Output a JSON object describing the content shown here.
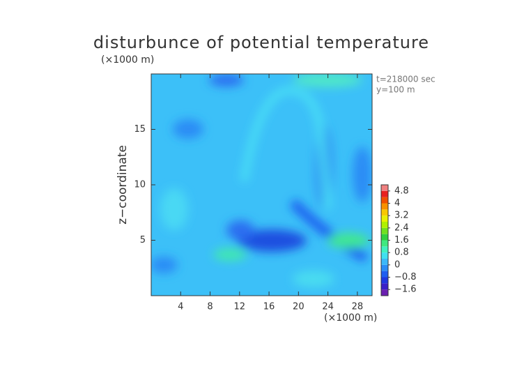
{
  "chart_data": {
    "type": "contour",
    "title": "disturbunce of potential temperature",
    "y_unit_label": "(×1000 m)",
    "x_unit_label": "(×1000 m)",
    "ylabel": "z−coordinate",
    "annotations": [
      "t=218000 sec",
      "y=100 m"
    ],
    "xlim": [
      0,
      30
    ],
    "xticks": [
      4,
      8,
      12,
      16,
      20,
      24,
      28
    ],
    "ylim": [
      0,
      20
    ],
    "yticks": [
      5,
      10,
      15
    ],
    "colorbar": {
      "lim": [
        -2.0,
        5.2
      ],
      "levels": [
        -2.0,
        -1.6,
        -1.2,
        -0.8,
        -0.4,
        0,
        0.4,
        0.8,
        1.2,
        1.6,
        2.0,
        2.4,
        2.8,
        3.2,
        3.6,
        4.0,
        4.4,
        4.8,
        5.2
      ],
      "colors": [
        "#6a1fb0",
        "#3a20c8",
        "#2038e0",
        "#1f5ef0",
        "#2a8cf5",
        "#3cb8f8",
        "#40e0f0",
        "#40f0c0",
        "#40e880",
        "#30d040",
        "#70e020",
        "#b0f000",
        "#e8f000",
        "#f8c800",
        "#f89000",
        "#f05000",
        "#e82020",
        "#f08080"
      ],
      "ticks": [
        {
          "value": 4.8,
          "label": "4.8"
        },
        4,
        {
          "value": 3.2,
          "label": "3.2"
        },
        {
          "value": 2.4,
          "label": "2.4"
        },
        {
          "value": 1.6,
          "label": "1.6"
        },
        {
          "value": 0.8,
          "label": "0.8"
        },
        0,
        {
          "value": -0.8,
          "label": "−0.8"
        },
        {
          "value": -1.6,
          "label": "−1.6"
        }
      ]
    }
  }
}
